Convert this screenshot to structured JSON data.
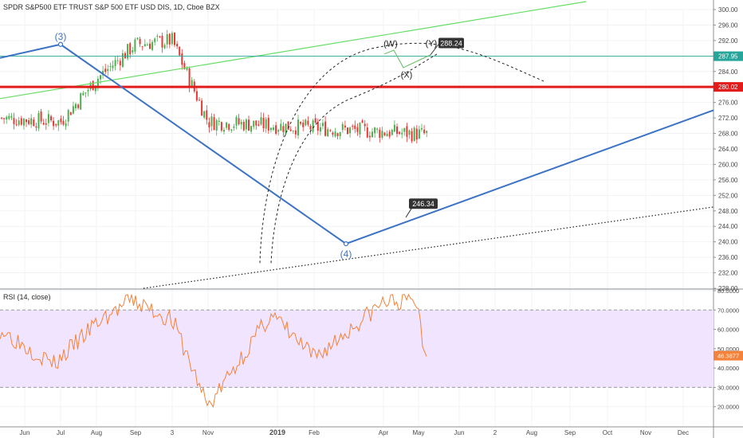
{
  "header": {
    "title": "SPDR S&P500 ETF TRUST S&P 500 ETF USD DIS, 1D, Cboe BZX",
    "rsi_title": "RSI (14, close)"
  },
  "colors": {
    "up_candle": "#4caf50",
    "down_candle": "#e53935",
    "wave_line": "#3d73c4",
    "green_trend": "#66dd66",
    "red_level": "#e21b1b",
    "rsi_line": "#f4823a",
    "rsi_band": "#f1e4ff",
    "price_line": "#26a69a"
  },
  "chart_data": [
    {
      "type": "candlestick",
      "title": "SPDR S&P500 ETF TRUST S&P 500 ETF USD DIS, 1D, Cboe BZX",
      "ylim": [
        228,
        300
      ],
      "y_ticks": [
        "300.00",
        "296.00",
        "292.00",
        "288.00",
        "284.00",
        "280.00",
        "276.00",
        "272.00",
        "268.00",
        "264.00",
        "260.00",
        "256.00",
        "252.00",
        "248.00",
        "244.00",
        "240.00",
        "236.00",
        "232.00",
        "228.00"
      ],
      "x_ticks": [
        "Jun",
        "Jul",
        "Aug",
        "Sep",
        "3",
        "Nov",
        "2019",
        "Feb",
        "Apr",
        "May",
        "Jun",
        "2",
        "Aug",
        "Sep",
        "Oct",
        "Nov",
        "Dec"
      ],
      "price_path": [
        [
          "Jun",
          272
        ],
        [
          "Jul",
          271
        ],
        [
          "Aug",
          282
        ],
        [
          "Sep",
          291
        ],
        [
          "3",
          292
        ],
        [
          "Nov",
          271
        ],
        [
          "Dec",
          264
        ],
        [
          "2019",
          235
        ],
        [
          "Feb",
          263
        ],
        [
          "Apr",
          285
        ],
        [
          "May",
          293
        ],
        [
          "May",
          288
        ]
      ],
      "price_labels": [
        {
          "label": "287.95",
          "value": 287.95
        },
        {
          "label": "280.02",
          "value": 280.02
        }
      ],
      "annotations": {
        "wave_3": "(3)",
        "wave_4": "(4)",
        "wave_w": "(W)",
        "wave_x": "(X)",
        "wave_y": "(Y)",
        "callout_high": "288.24",
        "callout_low": "246.34"
      },
      "lines": {
        "wave_path": [
          [
            "Jun",
            287.5
          ],
          [
            "Jul",
            291
          ],
          [
            "Feb",
            239.5
          ],
          [
            "Dec",
            274
          ]
        ],
        "green_trendline": [
          [
            "Jun",
            277
          ],
          [
            "Sep",
            300
          ]
        ],
        "red_level": 280.02,
        "dotted_support": [
          [
            "Sep",
            228
          ],
          [
            "Dec",
            249
          ]
        ]
      }
    },
    {
      "type": "line",
      "title": "RSI (14, close)",
      "ylim": [
        10,
        80
      ],
      "y_ticks": [
        "80.0000",
        "70.0000",
        "60.0000",
        "50.0000",
        "40.0000",
        "30.0000",
        "20.0000"
      ],
      "band": [
        30,
        70
      ],
      "current_value_label": "46.3877",
      "current_value": 46.39,
      "x": [
        "Jun",
        "Jul",
        "Aug",
        "Sep",
        "3",
        "Nov",
        "2019",
        "Feb",
        "Apr",
        "May",
        "May"
      ],
      "values": [
        60,
        42,
        63,
        75,
        65,
        20,
        68,
        45,
        74,
        75,
        46
      ]
    }
  ]
}
